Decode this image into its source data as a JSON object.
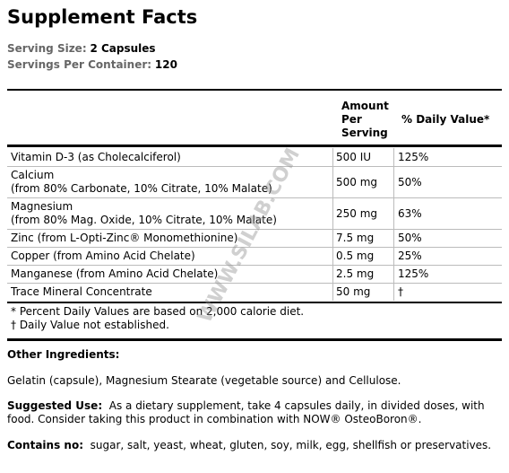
{
  "header": {
    "title": "Supplement Facts",
    "serving_size_label": "Serving Size:",
    "serving_size": "2 Capsules",
    "servings_label": "Servings Per Container:",
    "servings": "120"
  },
  "table": {
    "columns": [
      "Amount Per Serving",
      "% Daily Value*"
    ],
    "rows": [
      {
        "name": [
          "Vitamin D-3 (as Cholecalciferol)"
        ],
        "amount": "500 IU",
        "dv": "125%"
      },
      {
        "name": [
          "Calcium",
          "(from 80% Carbonate, 10% Citrate, 10% Malate)"
        ],
        "amount": "500 mg",
        "dv": "50%"
      },
      {
        "name": [
          "Magnesium",
          "(from 80% Mag. Oxide, 10% Citrate, 10% Malate)"
        ],
        "amount": "250 mg",
        "dv": "63%"
      },
      {
        "name": [
          "Zinc (from L-Opti-Zinc® Monomethionine)"
        ],
        "amount": "7.5 mg",
        "dv": "50%"
      },
      {
        "name": [
          "Copper (from Amino Acid Chelate)"
        ],
        "amount": "0.5 mg",
        "dv": "25%"
      },
      {
        "name": [
          "Manganese (from Amino Acid Chelate)"
        ],
        "amount": "2.5 mg",
        "dv": "125%"
      },
      {
        "name": [
          "Trace Mineral Concentrate"
        ],
        "amount": "50 mg",
        "dv": "†"
      }
    ],
    "footnotes": [
      "* Percent Daily Values are based on 2,000 calorie diet.",
      "† Daily Value not established."
    ]
  },
  "other_ingredients": {
    "label": "Other Ingredients:",
    "text": "Gelatin (capsule), Magnesium Stearate (vegetable source) and Cellulose."
  },
  "suggested_use": {
    "label": "Suggested Use:",
    "text": "As a dietary supplement, take 4 capsules daily, in divided doses, with food. Consider taking this product in combination with NOW® OsteoBoron®."
  },
  "contains_no": {
    "label": "Contains no:",
    "text": "sugar, salt, yeast, wheat, gluten, soy, milk, egg, shellfish or preservatives."
  },
  "watermark": "WWW.SILAB.COM"
}
